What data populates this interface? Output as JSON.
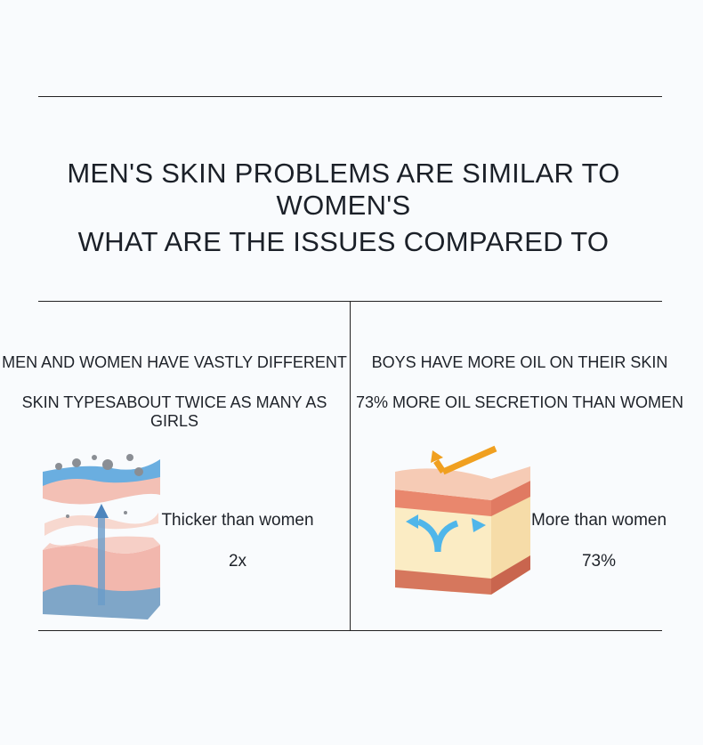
{
  "heading": {
    "line1": "MEN'S SKIN PROBLEMS ARE SIMILAR TO WOMEN'S",
    "line2": "WHAT ARE THE ISSUES COMPARED TO"
  },
  "left": {
    "line1": "MEN AND WOMEN HAVE VASTLY DIFFERENT",
    "line2": "SKIN TYPESABOUT TWICE AS MANY AS GIRLS",
    "caption": "Thicker than women",
    "value": "2x",
    "icon": "skin-layers-illustration"
  },
  "right": {
    "line1": "BOYS HAVE MORE OIL ON THEIR SKIN",
    "line2": "73% MORE OIL SECRETION THAN WOMEN",
    "caption": "More than women",
    "value": "73%",
    "icon": "oily-skin-cube-illustration"
  },
  "colors": {
    "text": "#1b2028",
    "background": "#f9fbfd",
    "orange_arrow": "#f0a020",
    "blue_arrow": "#4fb6ea"
  }
}
